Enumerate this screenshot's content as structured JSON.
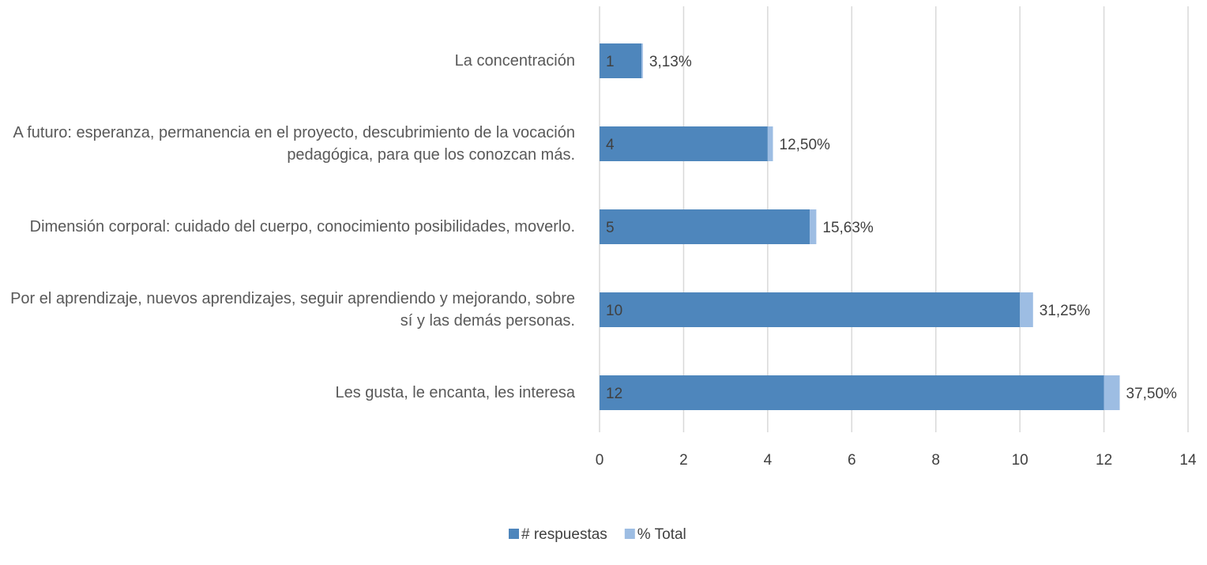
{
  "chart_data": {
    "type": "bar",
    "orientation": "horizontal",
    "stacked": true,
    "categories": [
      "La concentración",
      "A futuro: esperanza, permanencia en el proyecto, descubrimiento de la vocación pedagógica, para que los conozcan más.",
      "Dimensión corporal: cuidado del cuerpo, conocimiento posibilidades, moverlo.",
      "Por el aprendizaje, nuevos aprendizajes, seguir aprendiendo y mejorando, sobre sí y las demás personas.",
      "Les gusta, le encanta, les interesa"
    ],
    "series": [
      {
        "name": "# respuestas",
        "color": "#4e86bc",
        "values": [
          1,
          4,
          5,
          10,
          12
        ]
      },
      {
        "name": "% Total",
        "color": "#9dbde3",
        "values": [
          0.0313,
          0.125,
          0.1563,
          0.3125,
          0.375
        ],
        "value_labels": [
          "3,13%",
          "12,50%",
          "15,63%",
          "31,25%",
          "37,50%"
        ]
      }
    ],
    "xlim": [
      0,
      14
    ],
    "xticks": [
      0,
      2,
      4,
      6,
      8,
      10,
      12,
      14
    ],
    "grid": true,
    "legend": "bottom"
  }
}
